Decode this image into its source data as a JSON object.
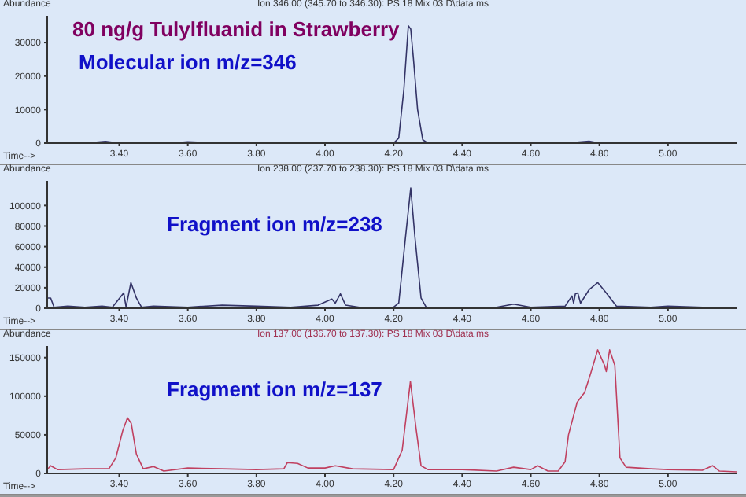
{
  "chart_data": [
    {
      "type": "line",
      "title": "80 ng/g Tulylfluanid in Strawberry",
      "subtitle": "Ion 346.00 (345.70 to 346.30): PS 18 Mix 03 D\\data.ms",
      "xlabel": "Time-->",
      "ylabel": "Abundance",
      "annotations": [
        "Molecular ion m/z=346"
      ],
      "xlim": [
        3.19,
        5.2
      ],
      "xticks": [
        {
          "value": 3.4,
          "label": "3.40"
        },
        {
          "value": 3.6,
          "label": "3.60"
        },
        {
          "value": 3.8,
          "label": "3.80"
        },
        {
          "value": 4.0,
          "label": "4.00"
        },
        {
          "value": 4.2,
          "label": "4.20"
        },
        {
          "value": 4.4,
          "label": "4.40"
        },
        {
          "value": 4.6,
          "label": "4.60"
        },
        {
          "value": 4.8,
          "label": "4.80"
        },
        {
          "value": 5.0,
          "label": "5.00"
        }
      ],
      "ylim": [
        0,
        38000
      ],
      "yticks": [
        0,
        10000,
        20000,
        30000
      ],
      "series": [
        {
          "color": "#333366",
          "x": [
            3.19,
            3.25,
            3.3,
            3.36,
            3.4,
            3.5,
            3.55,
            3.6,
            3.7,
            3.8,
            3.9,
            4.0,
            4.1,
            4.2,
            4.215,
            4.23,
            4.243,
            4.25,
            4.258,
            4.27,
            4.285,
            4.3,
            4.4,
            4.5,
            4.6,
            4.7,
            4.77,
            4.8,
            4.9,
            5.0,
            5.1,
            5.2
          ],
          "values": [
            0,
            200,
            0,
            500,
            0,
            300,
            0,
            400,
            0,
            200,
            0,
            300,
            0,
            0,
            1500,
            16000,
            35000,
            34000,
            25000,
            10000,
            1000,
            0,
            200,
            0,
            0,
            0,
            600,
            0,
            300,
            0,
            200,
            0
          ]
        }
      ]
    },
    {
      "type": "line",
      "subtitle": "Ion 238.00 (237.70 to 238.30): PS 18 Mix 03 D\\data.ms",
      "xlabel": "Time-->",
      "ylabel": "Abundance",
      "annotations": [
        "Fragment ion m/z=238"
      ],
      "xlim": [
        3.19,
        5.2
      ],
      "xticks": [
        {
          "value": 3.4,
          "label": "3.40"
        },
        {
          "value": 3.6,
          "label": "3.60"
        },
        {
          "value": 3.8,
          "label": "3.80"
        },
        {
          "value": 4.0,
          "label": "4.00"
        },
        {
          "value": 4.2,
          "label": "4.20"
        },
        {
          "value": 4.4,
          "label": "4.40"
        },
        {
          "value": 4.6,
          "label": "4.60"
        },
        {
          "value": 4.8,
          "label": "4.80"
        },
        {
          "value": 5.0,
          "label": "5.00"
        }
      ],
      "ylim": [
        0,
        124000
      ],
      "yticks": [
        0,
        20000,
        40000,
        60000,
        80000,
        100000
      ],
      "series": [
        {
          "color": "#333366",
          "x": [
            3.19,
            3.2,
            3.21,
            3.25,
            3.3,
            3.35,
            3.38,
            3.413,
            3.42,
            3.434,
            3.45,
            3.465,
            3.5,
            3.6,
            3.7,
            3.8,
            3.9,
            3.98,
            4.02,
            4.03,
            4.045,
            4.06,
            4.1,
            4.2,
            4.215,
            4.235,
            4.25,
            4.262,
            4.28,
            4.295,
            4.4,
            4.5,
            4.55,
            4.6,
            4.7,
            4.72,
            4.725,
            4.73,
            4.737,
            4.745,
            4.77,
            4.795,
            4.82,
            4.85,
            4.95,
            5.0,
            5.1,
            5.2
          ],
          "values": [
            10000,
            10000,
            1000,
            2000,
            1000,
            2000,
            1000,
            15000,
            1000,
            25000,
            10000,
            1000,
            2000,
            1000,
            3000,
            2000,
            1000,
            3000,
            9000,
            5000,
            14000,
            3000,
            1000,
            1000,
            5000,
            70000,
            117000,
            70000,
            10000,
            1000,
            1000,
            1000,
            4000,
            1000,
            2000,
            12000,
            5000,
            14000,
            15000,
            5000,
            18000,
            25000,
            15000,
            2000,
            1000,
            2000,
            1000,
            1000
          ]
        }
      ]
    },
    {
      "type": "line",
      "subtitle": "Ion 137.00 (136.70 to 137.30): PS 18 Mix 03 D\\data.ms",
      "xlabel": "Time-->",
      "ylabel": "Abundance",
      "annotations": [
        "Fragment ion m/z=137"
      ],
      "xlim": [
        3.19,
        5.2
      ],
      "xticks": [
        {
          "value": 3.4,
          "label": "3.40"
        },
        {
          "value": 3.6,
          "label": "3.60"
        },
        {
          "value": 3.8,
          "label": "3.80"
        },
        {
          "value": 4.0,
          "label": "4.00"
        },
        {
          "value": 4.2,
          "label": "4.20"
        },
        {
          "value": 4.4,
          "label": "4.40"
        },
        {
          "value": 4.6,
          "label": "4.60"
        },
        {
          "value": 4.8,
          "label": "4.80"
        },
        {
          "value": 5.0,
          "label": "5.00"
        }
      ],
      "ylim": [
        0,
        165000
      ],
      "yticks": [
        0,
        50000,
        100000,
        150000
      ],
      "series": [
        {
          "color": "#c04060",
          "x": [
            3.19,
            3.2,
            3.22,
            3.3,
            3.37,
            3.39,
            3.41,
            3.424,
            3.435,
            3.45,
            3.47,
            3.5,
            3.53,
            3.6,
            3.7,
            3.8,
            3.88,
            3.89,
            3.92,
            3.95,
            4.0,
            4.03,
            4.08,
            4.2,
            4.225,
            4.249,
            4.265,
            4.28,
            4.3,
            4.4,
            4.5,
            4.55,
            4.6,
            4.62,
            4.65,
            4.68,
            4.7,
            4.71,
            4.735,
            4.757,
            4.775,
            4.795,
            4.815,
            4.82,
            4.83,
            4.845,
            4.86,
            4.878,
            4.95,
            5.0,
            5.1,
            5.13,
            5.15,
            5.2
          ],
          "values": [
            5000,
            10000,
            5000,
            6000,
            6000,
            20000,
            55000,
            72000,
            65000,
            25000,
            6000,
            9000,
            3000,
            7000,
            6000,
            5000,
            6000,
            14000,
            13000,
            7000,
            7000,
            10000,
            6000,
            5000,
            30000,
            119000,
            60000,
            10000,
            5000,
            5000,
            3000,
            8000,
            5000,
            10000,
            3000,
            3000,
            15000,
            50000,
            92000,
            105000,
            130000,
            160000,
            140000,
            132000,
            160000,
            140000,
            20000,
            8000,
            6000,
            5000,
            4000,
            10000,
            3000,
            2000
          ]
        }
      ]
    }
  ]
}
